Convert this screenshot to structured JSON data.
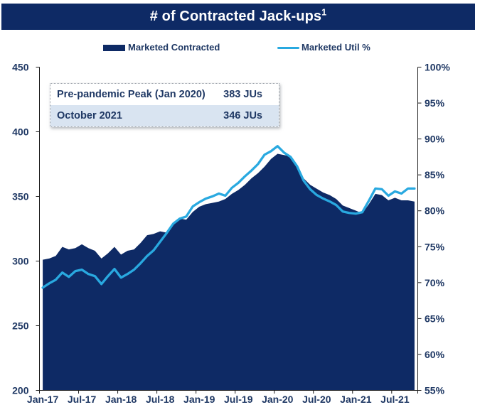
{
  "title": {
    "text": "# of Contracted Jack-ups",
    "superscript": "1"
  },
  "legend": {
    "items": [
      {
        "label": "Marketed Contracted",
        "marker": "filled-rectangle",
        "color": "#0e2a65"
      },
      {
        "label": "Marketed Util %",
        "marker": "line",
        "color": "#29a9e0"
      }
    ]
  },
  "callout": {
    "rows": [
      {
        "label": "Pre-pandemic Peak (Jan 2020)",
        "value": "383 JUs"
      },
      {
        "label": "October 2021",
        "value": "346 JUs"
      }
    ]
  },
  "chart_data": {
    "type": "combo",
    "title": "# of Contracted Jack-ups",
    "x": [
      "Jan-17",
      "Feb-17",
      "Mar-17",
      "Apr-17",
      "May-17",
      "Jun-17",
      "Jul-17",
      "Aug-17",
      "Sep-17",
      "Oct-17",
      "Nov-17",
      "Dec-17",
      "Jan-18",
      "Feb-18",
      "Mar-18",
      "Apr-18",
      "May-18",
      "Jun-18",
      "Jul-18",
      "Aug-18",
      "Sep-18",
      "Oct-18",
      "Nov-18",
      "Dec-18",
      "Jan-19",
      "Feb-19",
      "Mar-19",
      "Apr-19",
      "May-19",
      "Jun-19",
      "Jul-19",
      "Aug-19",
      "Sep-19",
      "Oct-19",
      "Nov-19",
      "Dec-19",
      "Jan-20",
      "Feb-20",
      "Mar-20",
      "Apr-20",
      "May-20",
      "Jun-20",
      "Jul-20",
      "Aug-20",
      "Sep-20",
      "Oct-20",
      "Nov-20",
      "Dec-20",
      "Jan-21",
      "Feb-21",
      "Mar-21",
      "Apr-21",
      "May-21",
      "Jun-21",
      "Jul-21",
      "Aug-21",
      "Sep-21",
      "Oct-21"
    ],
    "x_axis_tick_labels": [
      "Jan-17",
      "Jul-17",
      "Jan-18",
      "Jul-18",
      "Jan-19",
      "Jul-19",
      "Jan-20",
      "Jul-20",
      "Jan-21",
      "Jul-21"
    ],
    "series": [
      {
        "name": "Marketed Contracted",
        "type": "area",
        "axis": "left",
        "color": "#0e2a65",
        "values": [
          301,
          302,
          304,
          311,
          309,
          310,
          313,
          310,
          308,
          302,
          306,
          311,
          305,
          308,
          309,
          314,
          320,
          321,
          323,
          322,
          329,
          333,
          332,
          338,
          342,
          344,
          345,
          346,
          348,
          352,
          355,
          359,
          364,
          368,
          373,
          379,
          383,
          382,
          381,
          372,
          364,
          359,
          356,
          353,
          351,
          348,
          343,
          341,
          339,
          337,
          344,
          352,
          351,
          347,
          349,
          347,
          347,
          346
        ]
      },
      {
        "name": "Marketed Util %",
        "type": "line",
        "axis": "right",
        "color": "#29a9e0",
        "values": [
          69.3,
          69.9,
          70.4,
          71.4,
          70.8,
          71.6,
          71.8,
          71.2,
          70.9,
          69.8,
          70.9,
          71.9,
          70.7,
          71.2,
          71.8,
          72.7,
          73.7,
          74.5,
          75.7,
          76.9,
          78.2,
          78.9,
          79.2,
          80.6,
          81.2,
          81.7,
          82.0,
          82.4,
          82.1,
          83.2,
          83.9,
          84.8,
          85.6,
          86.5,
          87.8,
          88.3,
          89.0,
          88.1,
          87.5,
          86.2,
          84.2,
          83.0,
          82.2,
          81.7,
          81.3,
          80.8,
          79.9,
          79.7,
          79.6,
          79.8,
          81.4,
          83.1,
          83.0,
          82.1,
          82.7,
          82.4,
          83.1,
          83.1
        ]
      }
    ],
    "left_axis": {
      "min": 200,
      "max": 450,
      "step": 50,
      "tick_labels": [
        "200",
        "250",
        "300",
        "350",
        "400",
        "450"
      ]
    },
    "right_axis": {
      "min": 55,
      "max": 100,
      "step": 5,
      "suffix": "%",
      "tick_labels": [
        "55%",
        "60%",
        "65%",
        "70%",
        "75%",
        "80%",
        "85%",
        "90%",
        "95%",
        "100%"
      ]
    },
    "grid": false,
    "legend_position": "top"
  }
}
